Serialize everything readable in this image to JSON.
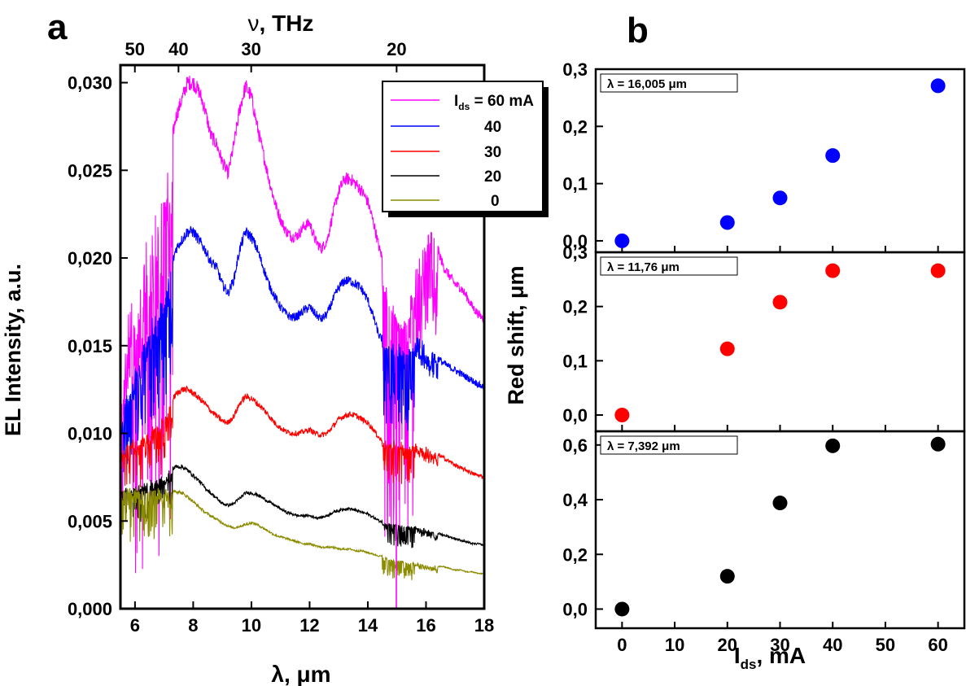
{
  "figure": {
    "panel_a_letter": "a",
    "panel_b_letter": "b"
  },
  "chart_data": [
    {
      "id": "a",
      "type": "line",
      "ylabel": "EL Intensity, a.u.",
      "xlabel_symbol": "λ",
      "xlabel_unit": ", μm",
      "top_xlabel_symbol": "ν",
      "top_xlabel_unit": ", THz",
      "xlim": [
        5.5,
        18
      ],
      "ylim": [
        0,
        0.031
      ],
      "x_ticks": [
        6,
        8,
        10,
        12,
        14,
        16,
        18
      ],
      "x_tick_labels": [
        "6",
        "8",
        "10",
        "12",
        "14",
        "16",
        "18"
      ],
      "y_ticks": [
        0,
        0.005,
        0.01,
        0.015,
        0.02,
        0.025,
        0.03
      ],
      "y_tick_labels": [
        "0,000",
        "0,005",
        "0,010",
        "0,015",
        "0,020",
        "0,025",
        "0,030"
      ],
      "top_ticks_thz": [
        50,
        40,
        30,
        20
      ],
      "top_tick_labels": [
        "50",
        "40",
        "30",
        "20"
      ],
      "legend": {
        "title_symbol": "I",
        "title_sub": "ds",
        "title_rest": " = 60 mA",
        "entries": [
          "40",
          "30",
          "20",
          "0"
        ]
      },
      "series": [
        {
          "current_mA": 60,
          "color": "#ff00ff",
          "x": [
            5.6,
            5.8,
            6.0,
            6.2,
            6.4,
            6.6,
            6.8,
            7.0,
            7.2,
            7.4,
            7.6,
            7.8,
            8.0,
            8.2,
            8.4,
            8.6,
            8.8,
            9.0,
            9.2,
            9.4,
            9.6,
            9.8,
            10.0,
            10.2,
            10.4,
            10.6,
            10.8,
            11.0,
            11.2,
            11.4,
            11.6,
            11.8,
            12.0,
            12.2,
            12.4,
            12.6,
            12.8,
            13.0,
            13.2,
            13.4,
            13.6,
            13.8,
            14.0,
            14.2,
            14.4,
            14.6,
            14.8,
            15.0,
            15.2,
            15.4,
            15.6,
            15.8,
            16.0,
            16.2,
            16.4,
            16.6,
            16.8,
            17.0,
            17.2,
            17.4,
            17.6,
            17.8,
            18.0
          ],
          "y": [
            0.014,
            0.017,
            0.018,
            0.019,
            0.021,
            0.022,
            0.023,
            0.024,
            0.026,
            0.028,
            0.029,
            0.03,
            0.03,
            0.0295,
            0.0285,
            0.027,
            0.0265,
            0.0255,
            0.0248,
            0.0265,
            0.0285,
            0.0298,
            0.0292,
            0.0275,
            0.026,
            0.0245,
            0.0232,
            0.0222,
            0.0215,
            0.0212,
            0.0213,
            0.0218,
            0.022,
            0.021,
            0.0205,
            0.021,
            0.0225,
            0.0238,
            0.0245,
            0.0245,
            0.0242,
            0.0238,
            0.0232,
            0.022,
            0.0205,
            0.0195,
            0.0185,
            0.0178,
            0.0172,
            0.0178,
            0.019,
            0.0205,
            0.0215,
            0.0215,
            0.0205,
            0.0195,
            0.019,
            0.0185,
            0.0183,
            0.0178,
            0.0172,
            0.0168,
            0.0165
          ],
          "absorption_depth": 0.9
        },
        {
          "current_mA": 40,
          "color": "#0000ff",
          "x": [
            5.6,
            5.8,
            6.0,
            6.2,
            6.4,
            6.6,
            6.8,
            7.0,
            7.2,
            7.4,
            7.6,
            7.8,
            8.0,
            8.2,
            8.4,
            8.6,
            8.8,
            9.0,
            9.2,
            9.4,
            9.6,
            9.8,
            10.0,
            10.2,
            10.4,
            10.6,
            10.8,
            11.0,
            11.2,
            11.4,
            11.6,
            11.8,
            12.0,
            12.2,
            12.4,
            12.6,
            12.8,
            13.0,
            13.2,
            13.4,
            13.6,
            13.8,
            14.0,
            14.2,
            14.4,
            14.6,
            14.8,
            15.0,
            15.2,
            15.4,
            15.6,
            15.8,
            16.0,
            16.2,
            16.4,
            16.6,
            16.8,
            17.0,
            17.2,
            17.4,
            17.6,
            17.8,
            18.0
          ],
          "y": [
            0.0115,
            0.0125,
            0.0135,
            0.0145,
            0.0155,
            0.0165,
            0.017,
            0.018,
            0.019,
            0.0205,
            0.021,
            0.0215,
            0.0215,
            0.021,
            0.0205,
            0.0198,
            0.0195,
            0.0185,
            0.018,
            0.0188,
            0.0205,
            0.0215,
            0.0212,
            0.0205,
            0.0195,
            0.0185,
            0.0178,
            0.0172,
            0.0168,
            0.0166,
            0.0167,
            0.017,
            0.0172,
            0.0168,
            0.0165,
            0.0168,
            0.0176,
            0.0183,
            0.0187,
            0.0187,
            0.0185,
            0.0182,
            0.0176,
            0.0166,
            0.0155,
            0.0153,
            0.0152,
            0.015,
            0.0148,
            0.015,
            0.0152,
            0.0153,
            0.0152,
            0.0148,
            0.0143,
            0.014,
            0.0138,
            0.0136,
            0.0134,
            0.0132,
            0.013,
            0.0128,
            0.0126
          ],
          "absorption_depth": 0.35
        },
        {
          "current_mA": 30,
          "color": "#ff0000",
          "x": [
            5.6,
            5.8,
            6.0,
            6.2,
            6.4,
            6.6,
            6.8,
            7.0,
            7.2,
            7.4,
            7.6,
            7.8,
            8.0,
            8.2,
            8.4,
            8.6,
            8.8,
            9.0,
            9.2,
            9.4,
            9.6,
            9.8,
            10.0,
            10.2,
            10.4,
            10.6,
            10.8,
            11.0,
            11.2,
            11.4,
            11.6,
            11.8,
            12.0,
            12.2,
            12.4,
            12.6,
            12.8,
            13.0,
            13.2,
            13.4,
            13.6,
            13.8,
            14.0,
            14.2,
            14.4,
            14.6,
            14.8,
            15.0,
            15.2,
            15.4,
            15.6,
            15.8,
            16.0,
            16.2,
            16.4,
            16.6,
            16.8,
            17.0,
            17.2,
            17.4,
            17.6,
            17.8,
            18.0
          ],
          "y": [
            0.0092,
            0.0094,
            0.0096,
            0.0098,
            0.01,
            0.0103,
            0.0106,
            0.011,
            0.0117,
            0.0122,
            0.0125,
            0.0125,
            0.0123,
            0.012,
            0.0117,
            0.0113,
            0.011,
            0.0107,
            0.0106,
            0.011,
            0.0117,
            0.0121,
            0.012,
            0.0117,
            0.0114,
            0.011,
            0.0106,
            0.0103,
            0.0101,
            0.01,
            0.01,
            0.0101,
            0.0102,
            0.01,
            0.0099,
            0.01,
            0.0104,
            0.0108,
            0.011,
            0.0111,
            0.011,
            0.0108,
            0.0106,
            0.0102,
            0.0097,
            0.0095,
            0.0095,
            0.0095,
            0.0094,
            0.0094,
            0.0094,
            0.0094,
            0.0092,
            0.009,
            0.0088,
            0.0086,
            0.0084,
            0.0082,
            0.008,
            0.0079,
            0.0077,
            0.0076,
            0.0075
          ],
          "absorption_depth": 0.28
        },
        {
          "current_mA": 20,
          "color": "#000000",
          "x": [
            5.6,
            5.8,
            6.0,
            6.2,
            6.4,
            6.6,
            6.8,
            7.0,
            7.2,
            7.4,
            7.6,
            7.8,
            8.0,
            8.2,
            8.4,
            8.6,
            8.8,
            9.0,
            9.2,
            9.4,
            9.6,
            9.8,
            10.0,
            10.2,
            10.4,
            10.6,
            10.8,
            11.0,
            11.2,
            11.4,
            11.6,
            11.8,
            12.0,
            12.2,
            12.4,
            12.6,
            12.8,
            13.0,
            13.2,
            13.4,
            13.6,
            13.8,
            14.0,
            14.2,
            14.4,
            14.6,
            14.8,
            15.0,
            15.2,
            15.4,
            15.6,
            15.8,
            16.0,
            16.2,
            16.4,
            16.6,
            16.8,
            17.0,
            17.2,
            17.4,
            17.6,
            17.8,
            18.0
          ],
          "y": [
            0.0068,
            0.0069,
            0.007,
            0.0071,
            0.0072,
            0.0073,
            0.0074,
            0.0076,
            0.0079,
            0.0081,
            0.0081,
            0.0079,
            0.0076,
            0.0073,
            0.0069,
            0.0066,
            0.0063,
            0.006,
            0.0059,
            0.006,
            0.0063,
            0.0066,
            0.0066,
            0.0065,
            0.0063,
            0.0061,
            0.0059,
            0.0057,
            0.0055,
            0.0054,
            0.0053,
            0.0053,
            0.0053,
            0.0052,
            0.0052,
            0.0053,
            0.0055,
            0.0056,
            0.0057,
            0.0057,
            0.0056,
            0.0055,
            0.0054,
            0.0052,
            0.005,
            0.0049,
            0.0049,
            0.0049,
            0.0048,
            0.0048,
            0.0047,
            0.0046,
            0.0045,
            0.0044,
            0.0043,
            0.0042,
            0.0041,
            0.004,
            0.0039,
            0.0038,
            0.0037,
            0.0037,
            0.0036
          ],
          "absorption_depth": 0.3
        },
        {
          "current_mA": 0,
          "color": "#8b8b00",
          "x": [
            5.6,
            5.8,
            6.0,
            6.2,
            6.4,
            6.6,
            6.8,
            7.0,
            7.2,
            7.4,
            7.6,
            7.8,
            8.0,
            8.2,
            8.4,
            8.6,
            8.8,
            9.0,
            9.2,
            9.4,
            9.6,
            9.8,
            10.0,
            10.2,
            10.4,
            10.6,
            10.8,
            11.0,
            11.2,
            11.4,
            11.6,
            11.8,
            12.0,
            12.2,
            12.4,
            12.6,
            12.8,
            13.0,
            13.2,
            13.4,
            13.6,
            13.8,
            14.0,
            14.2,
            14.4,
            14.6,
            14.8,
            15.0,
            15.2,
            15.4,
            15.6,
            15.8,
            16.0,
            16.2,
            16.4,
            16.6,
            16.8,
            17.0,
            17.2,
            17.4,
            17.6,
            17.8,
            18.0
          ],
          "y": [
            0.0068,
            0.0068,
            0.0069,
            0.0069,
            0.0069,
            0.0069,
            0.0069,
            0.0069,
            0.0068,
            0.0067,
            0.0066,
            0.0064,
            0.0061,
            0.0058,
            0.0055,
            0.0053,
            0.0051,
            0.0049,
            0.0047,
            0.0046,
            0.0047,
            0.0048,
            0.0049,
            0.0048,
            0.0046,
            0.0044,
            0.0042,
            0.0041,
            0.004,
            0.0039,
            0.0038,
            0.0037,
            0.0037,
            0.0036,
            0.0035,
            0.0035,
            0.0035,
            0.0034,
            0.0034,
            0.0034,
            0.0033,
            0.0033,
            0.0032,
            0.0031,
            0.003,
            0.003,
            0.0029,
            0.0028,
            0.0028,
            0.0027,
            0.0027,
            0.0026,
            0.0025,
            0.0025,
            0.0024,
            0.0024,
            0.0023,
            0.0022,
            0.0022,
            0.0021,
            0.0021,
            0.002,
            0.002
          ],
          "absorption_depth": 0.45
        }
      ]
    },
    {
      "id": "b",
      "type": "scatter",
      "ylabel": "Red shift, μm",
      "xlabel_symbol": "I",
      "xlabel_sub": "ds",
      "xlabel_rest": ", mA",
      "xlim": [
        -5,
        65
      ],
      "x_ticks": [
        0,
        10,
        20,
        30,
        40,
        50,
        60
      ],
      "x_tick_labels": [
        "0",
        "10",
        "20",
        "30",
        "40",
        "50",
        "60"
      ],
      "panels": [
        {
          "label": "λ = 16,005 μm",
          "color": "#0000ff",
          "ylim": [
            -0.02,
            0.3
          ],
          "y_ticks": [
            0,
            0.1,
            0.2,
            0.3
          ],
          "y_tick_labels": [
            "0,0",
            "0,1",
            "0,2",
            "0,3"
          ],
          "x": [
            0,
            20,
            30,
            40,
            60
          ],
          "y": [
            0.0,
            0.032,
            0.075,
            0.149,
            0.271
          ]
        },
        {
          "label": "λ = 11,76 μm",
          "color": "#ff0000",
          "ylim": [
            -0.03,
            0.3
          ],
          "y_ticks": [
            0,
            0.1,
            0.2,
            0.3
          ],
          "y_tick_labels": [
            "0,0",
            "0,1",
            "0,2",
            "0,3"
          ],
          "x": [
            0,
            20,
            30,
            40,
            60
          ],
          "y": [
            0.0,
            0.122,
            0.208,
            0.266,
            0.266
          ]
        },
        {
          "label": "λ = 7,392 μm",
          "color": "#000000",
          "ylim": [
            -0.07,
            0.65
          ],
          "y_ticks": [
            0,
            0.2,
            0.4,
            0.6
          ],
          "y_tick_labels": [
            "0,0",
            "0,2",
            "0,4",
            "0,6"
          ],
          "x": [
            0,
            20,
            30,
            40,
            60
          ],
          "y": [
            0.0,
            0.12,
            0.388,
            0.597,
            0.603
          ]
        }
      ]
    }
  ]
}
